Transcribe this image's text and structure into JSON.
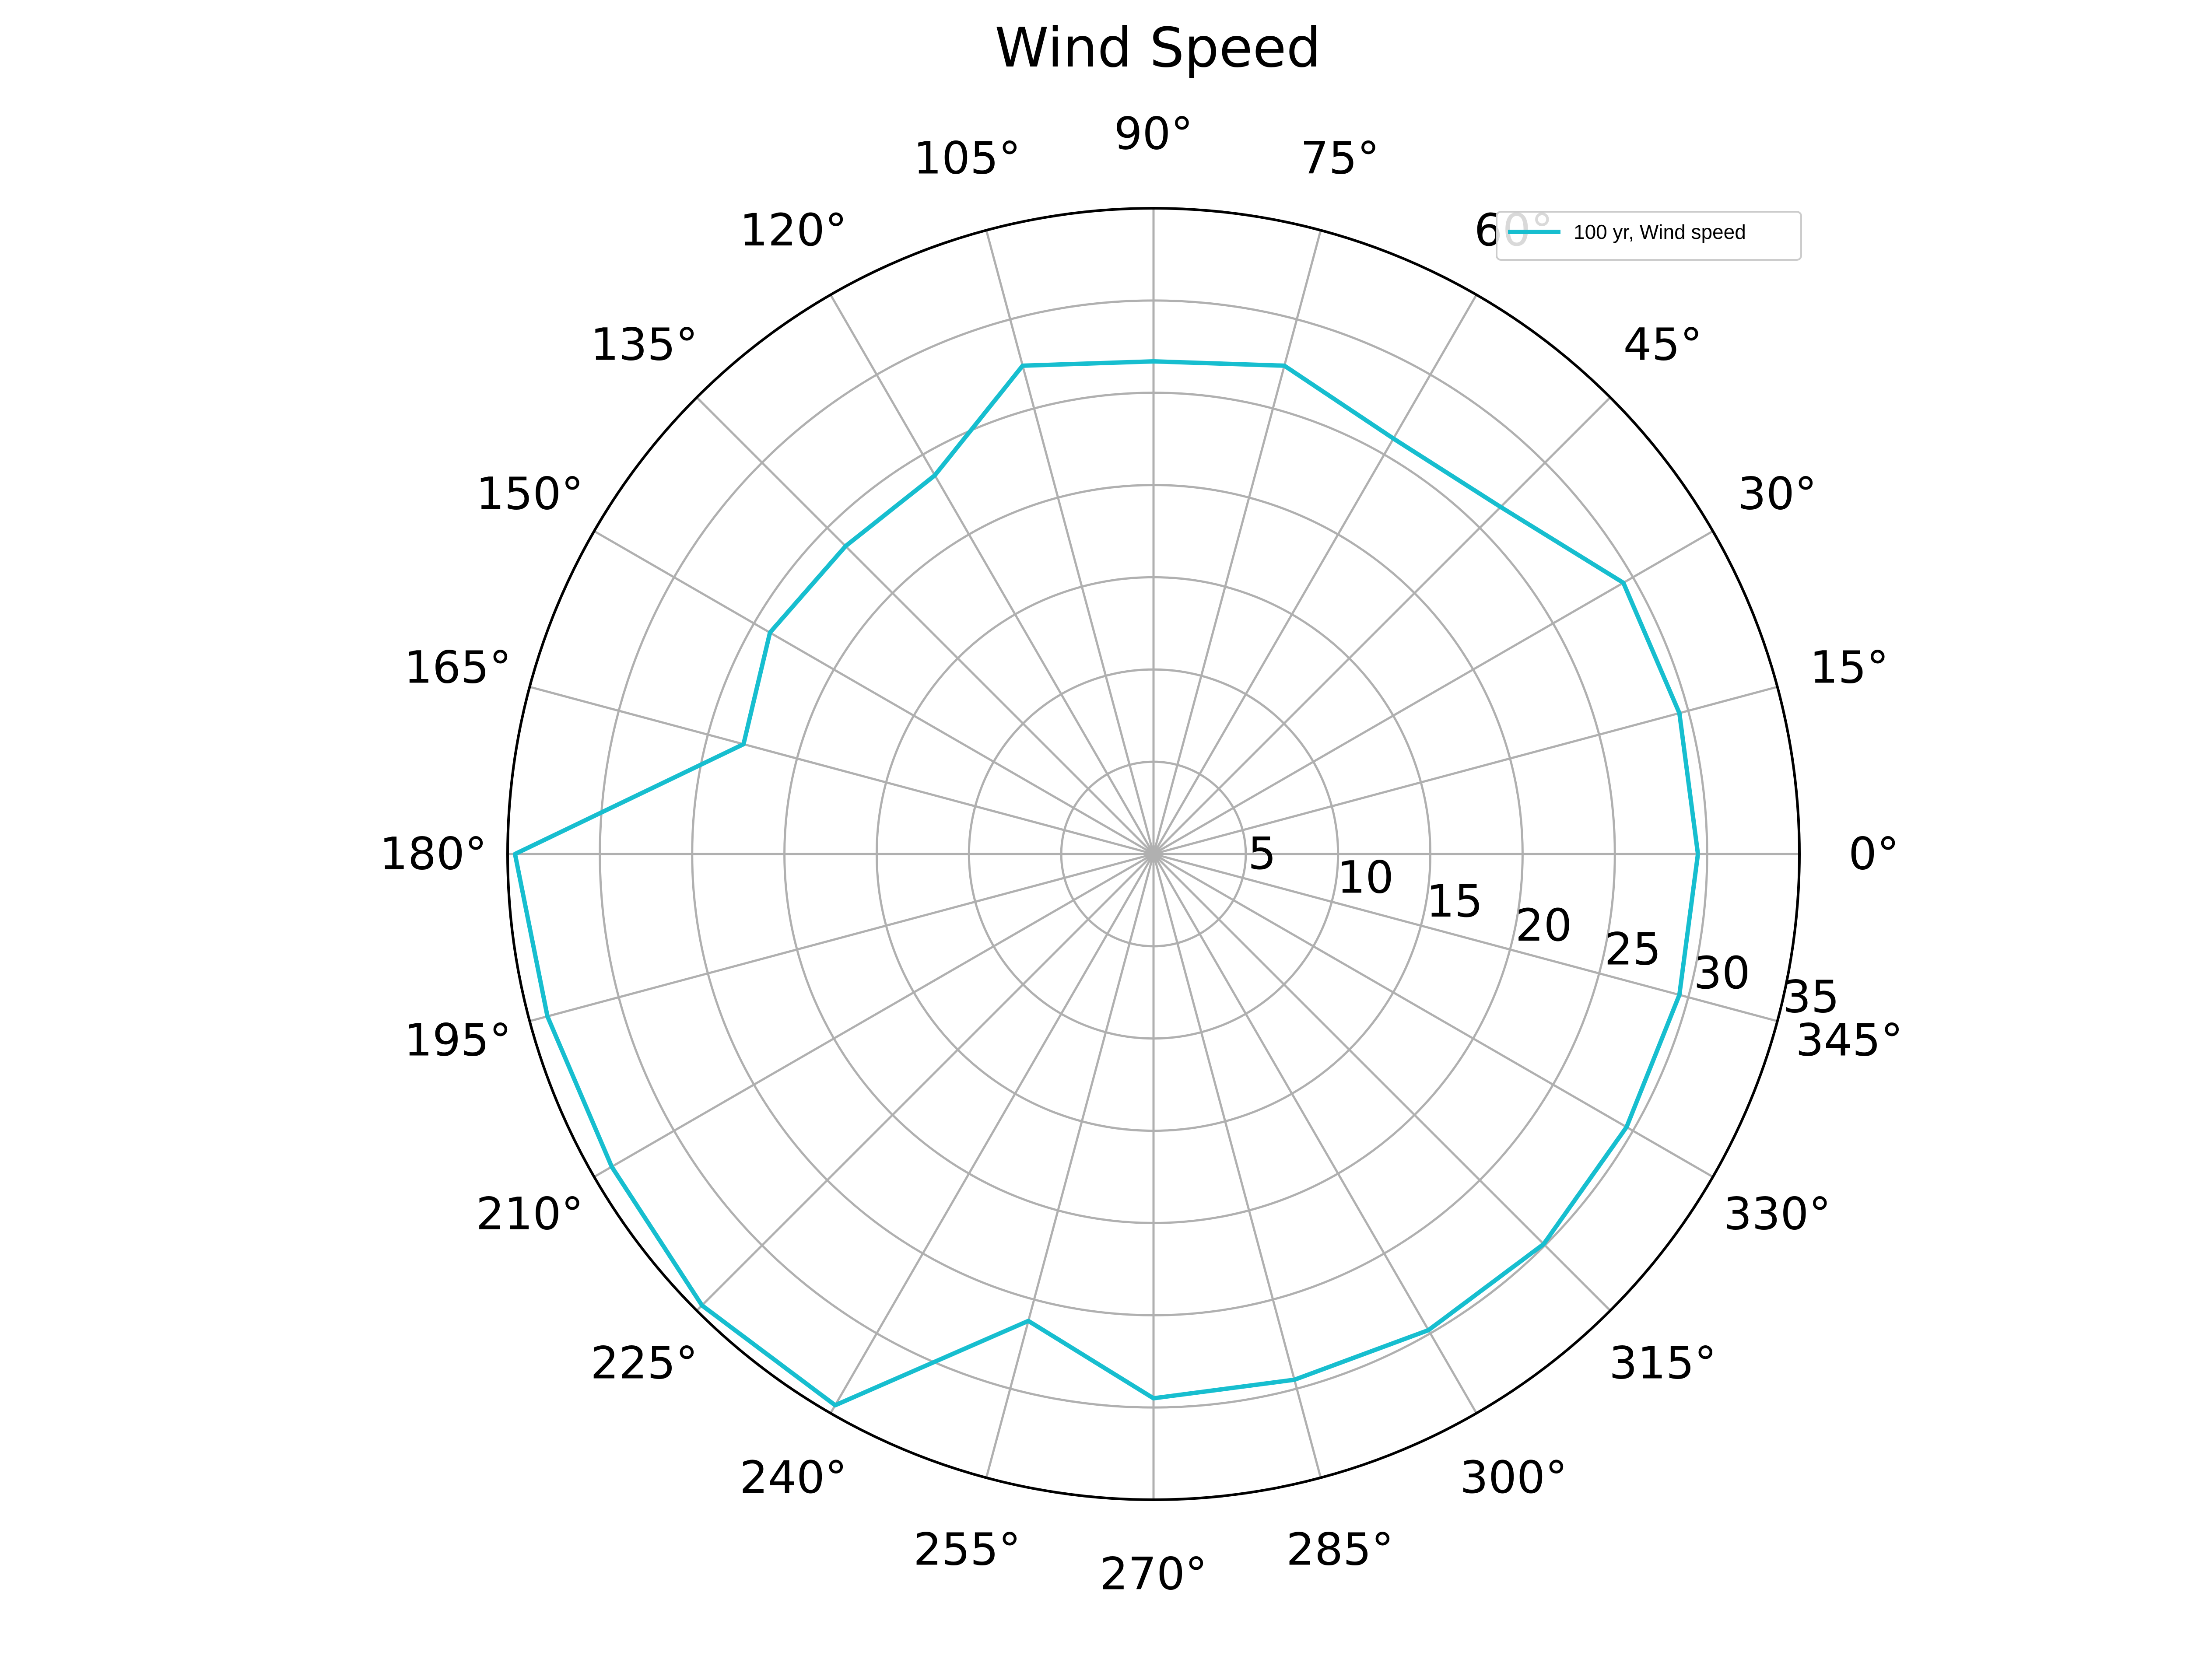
{
  "chart_data": {
    "type": "line",
    "projection": "polar",
    "title": "Wind Speed",
    "theta_unit": "degrees",
    "theta_direction": "counterclockwise",
    "theta_zero_location": "east",
    "theta_ticks": [
      "0°",
      "15°",
      "30°",
      "45°",
      "60°",
      "75°",
      "90°",
      "105°",
      "120°",
      "135°",
      "150°",
      "165°",
      "180°",
      "195°",
      "210°",
      "225°",
      "240°",
      "255°",
      "270°",
      "285°",
      "300°",
      "315°",
      "330°",
      "345°"
    ],
    "r_ticks": [
      "5",
      "10",
      "15",
      "20",
      "25",
      "30",
      "35"
    ],
    "r_tick_values": [
      5,
      10,
      15,
      20,
      25,
      30,
      35
    ],
    "r_label_angle_deg": -15,
    "rlim": [
      0,
      35
    ],
    "grid": true,
    "legend_position": "top-right",
    "series": [
      {
        "name": "100 yr, Wind speed",
        "color": "#17becf",
        "theta_deg": [
          0,
          15,
          30,
          45,
          60,
          75,
          90,
          105,
          120,
          135,
          150,
          165,
          180,
          195,
          210,
          225,
          240,
          255,
          270,
          285,
          300,
          315,
          330,
          345,
          360
        ],
        "r": [
          29.5,
          29.5,
          29.4,
          26.6,
          26.0,
          27.4,
          26.7,
          27.4,
          23.7,
          23.6,
          24.0,
          23.0,
          34.6,
          34.0,
          33.9,
          34.6,
          34.5,
          26.2,
          29.5,
          29.5,
          29.8,
          29.9,
          29.6,
          29.5,
          29.5
        ]
      }
    ]
  }
}
